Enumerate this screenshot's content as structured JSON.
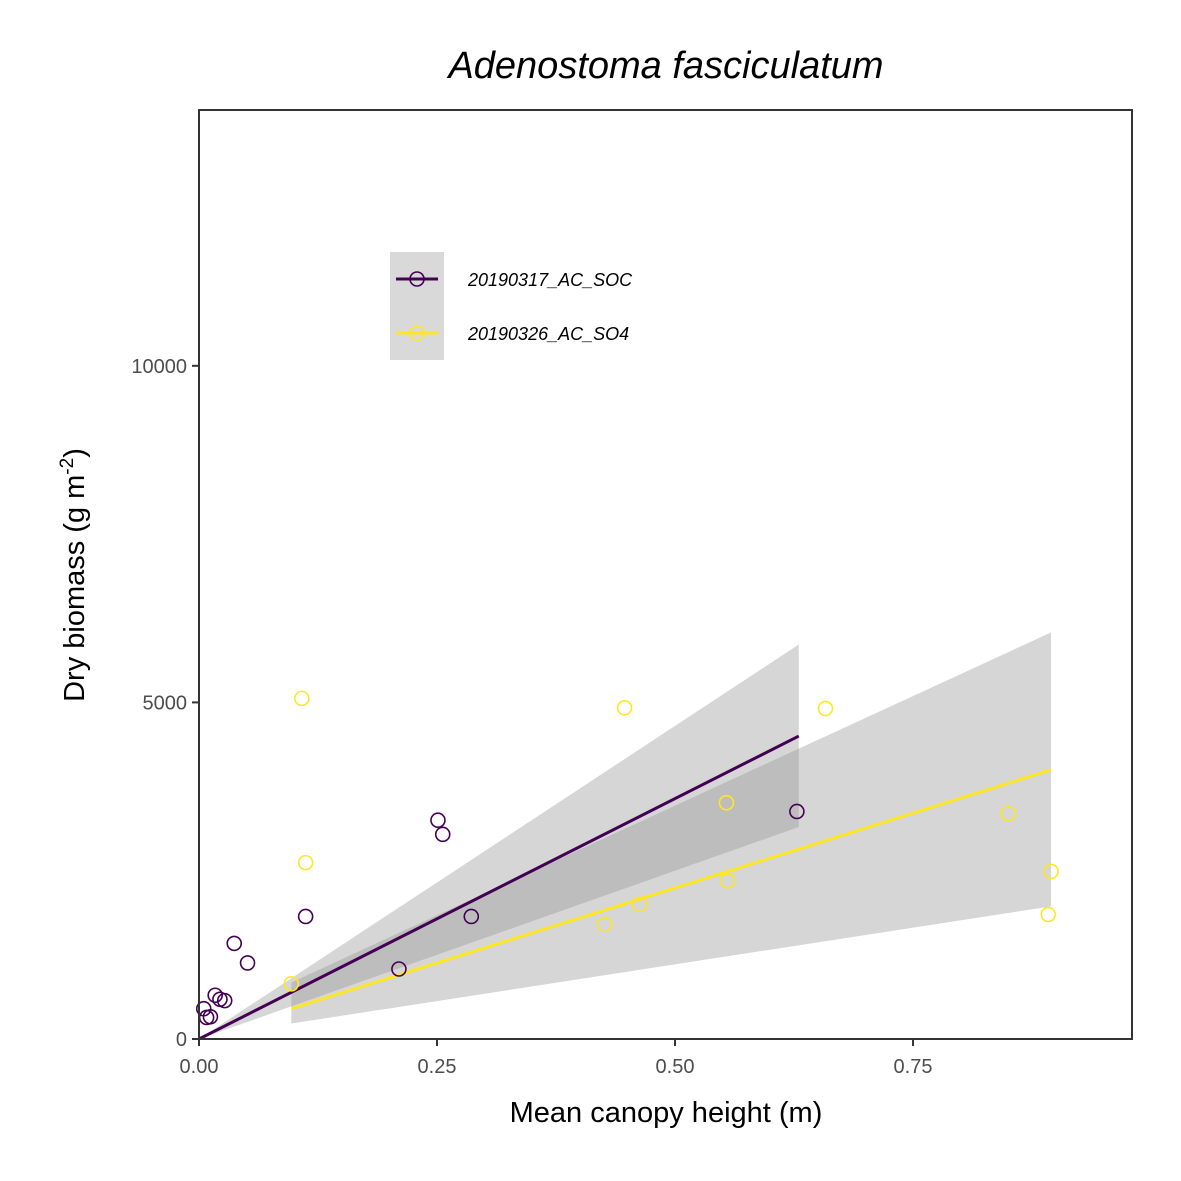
{
  "chart_data": {
    "type": "scatter",
    "title": "Adenostoma fasciculatum",
    "xlabel": "Mean canopy height (m)",
    "ylabel": "Dry biomass (g m",
    "ylabel_sup": "-2",
    "ylabel_end": ")",
    "xlim": [
      0,
      0.98
    ],
    "ylim": [
      0,
      13800
    ],
    "x_ticks": [
      0.0,
      0.25,
      0.5,
      0.75
    ],
    "x_tick_labels": [
      "0.00",
      "0.25",
      "0.50",
      "0.75"
    ],
    "y_ticks": [
      0,
      5000,
      10000
    ],
    "y_tick_labels": [
      "0",
      "5000",
      "10000"
    ],
    "grid": false,
    "legend_position": "top-left inside",
    "series": [
      {
        "name": "20190317_AC_SOC",
        "color": "#440154",
        "points": [
          [
            0.005,
            450
          ],
          [
            0.008,
            320
          ],
          [
            0.012,
            330
          ],
          [
            0.017,
            650
          ],
          [
            0.022,
            590
          ],
          [
            0.027,
            570
          ],
          [
            0.037,
            1420
          ],
          [
            0.051,
            1130
          ],
          [
            0.112,
            1820
          ],
          [
            0.21,
            1040
          ],
          [
            0.251,
            3250
          ],
          [
            0.256,
            3040
          ],
          [
            0.286,
            1820
          ],
          [
            0.628,
            3380
          ]
        ],
        "fit": {
          "x": [
            0.0,
            0.63
          ],
          "y": [
            0,
            4500
          ]
        },
        "ci_upper": [
          [
            0.0,
            0
          ],
          [
            0.63,
            5860
          ]
        ],
        "ci_lower": [
          [
            0.0,
            0
          ],
          [
            0.63,
            3150
          ]
        ]
      },
      {
        "name": "20190326_AC_SO4",
        "color": "#fde725",
        "points": [
          [
            0.097,
            820
          ],
          [
            0.108,
            5060
          ],
          [
            0.112,
            2620
          ],
          [
            0.426,
            1700
          ],
          [
            0.447,
            4920
          ],
          [
            0.463,
            2000
          ],
          [
            0.554,
            3510
          ],
          [
            0.555,
            2350
          ],
          [
            0.658,
            4910
          ],
          [
            0.85,
            3350
          ],
          [
            0.892,
            1850
          ],
          [
            0.895,
            2490
          ]
        ],
        "fit": {
          "x": [
            0.097,
            0.895
          ],
          "y": [
            450,
            4000
          ]
        },
        "ci_upper": [
          [
            0.097,
            840
          ],
          [
            0.895,
            6040
          ]
        ],
        "ci_lower": [
          [
            0.097,
            230
          ],
          [
            0.895,
            1970
          ]
        ]
      }
    ]
  }
}
